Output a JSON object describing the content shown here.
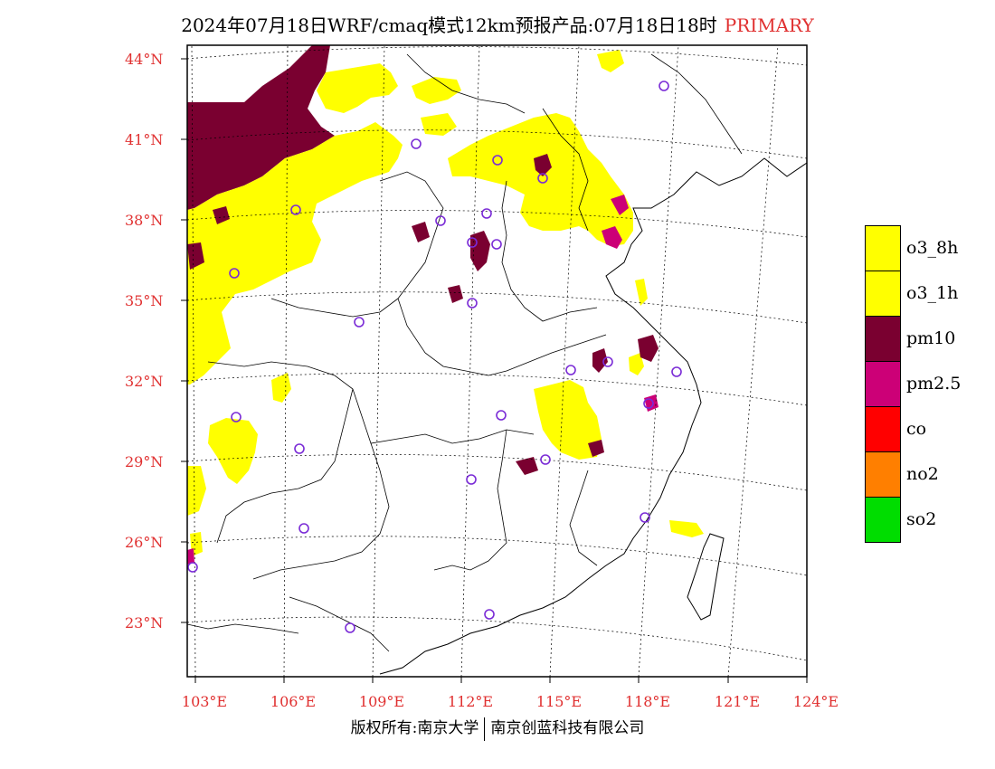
{
  "title": "2024年07月18日WRF/cmaq模式12km预报产品:07月18日18时",
  "title_tag": "PRIMARY",
  "lat_labels": [
    "44°N",
    "41°N",
    "38°N",
    "35°N",
    "32°N",
    "29°N",
    "26°N",
    "23°N"
  ],
  "lon_labels": [
    "103°E",
    "106°E",
    "109°E",
    "112°E",
    "115°E",
    "118°E",
    "121°E",
    "124°E"
  ],
  "legend": [
    {
      "label": "o3_8h",
      "color": "#ffff00"
    },
    {
      "label": "o3_1h",
      "color": "#ffff00"
    },
    {
      "label": "pm10",
      "color": "#7a0030"
    },
    {
      "label": "pm2.5",
      "color": "#cc0077"
    },
    {
      "label": "co",
      "color": "#ff0000"
    },
    {
      "label": "no2",
      "color": "#ff7f00"
    },
    {
      "label": "so2",
      "color": "#00dd00"
    }
  ],
  "footer_left": "版权所有:南京大学",
  "footer_right": "南京创蓝科技有限公司",
  "colors": {
    "axis_label": "#e03030",
    "o3": "#ffff00",
    "pm10": "#7a0030",
    "pm25": "#cc0077",
    "station": "#7a2bd6"
  }
}
